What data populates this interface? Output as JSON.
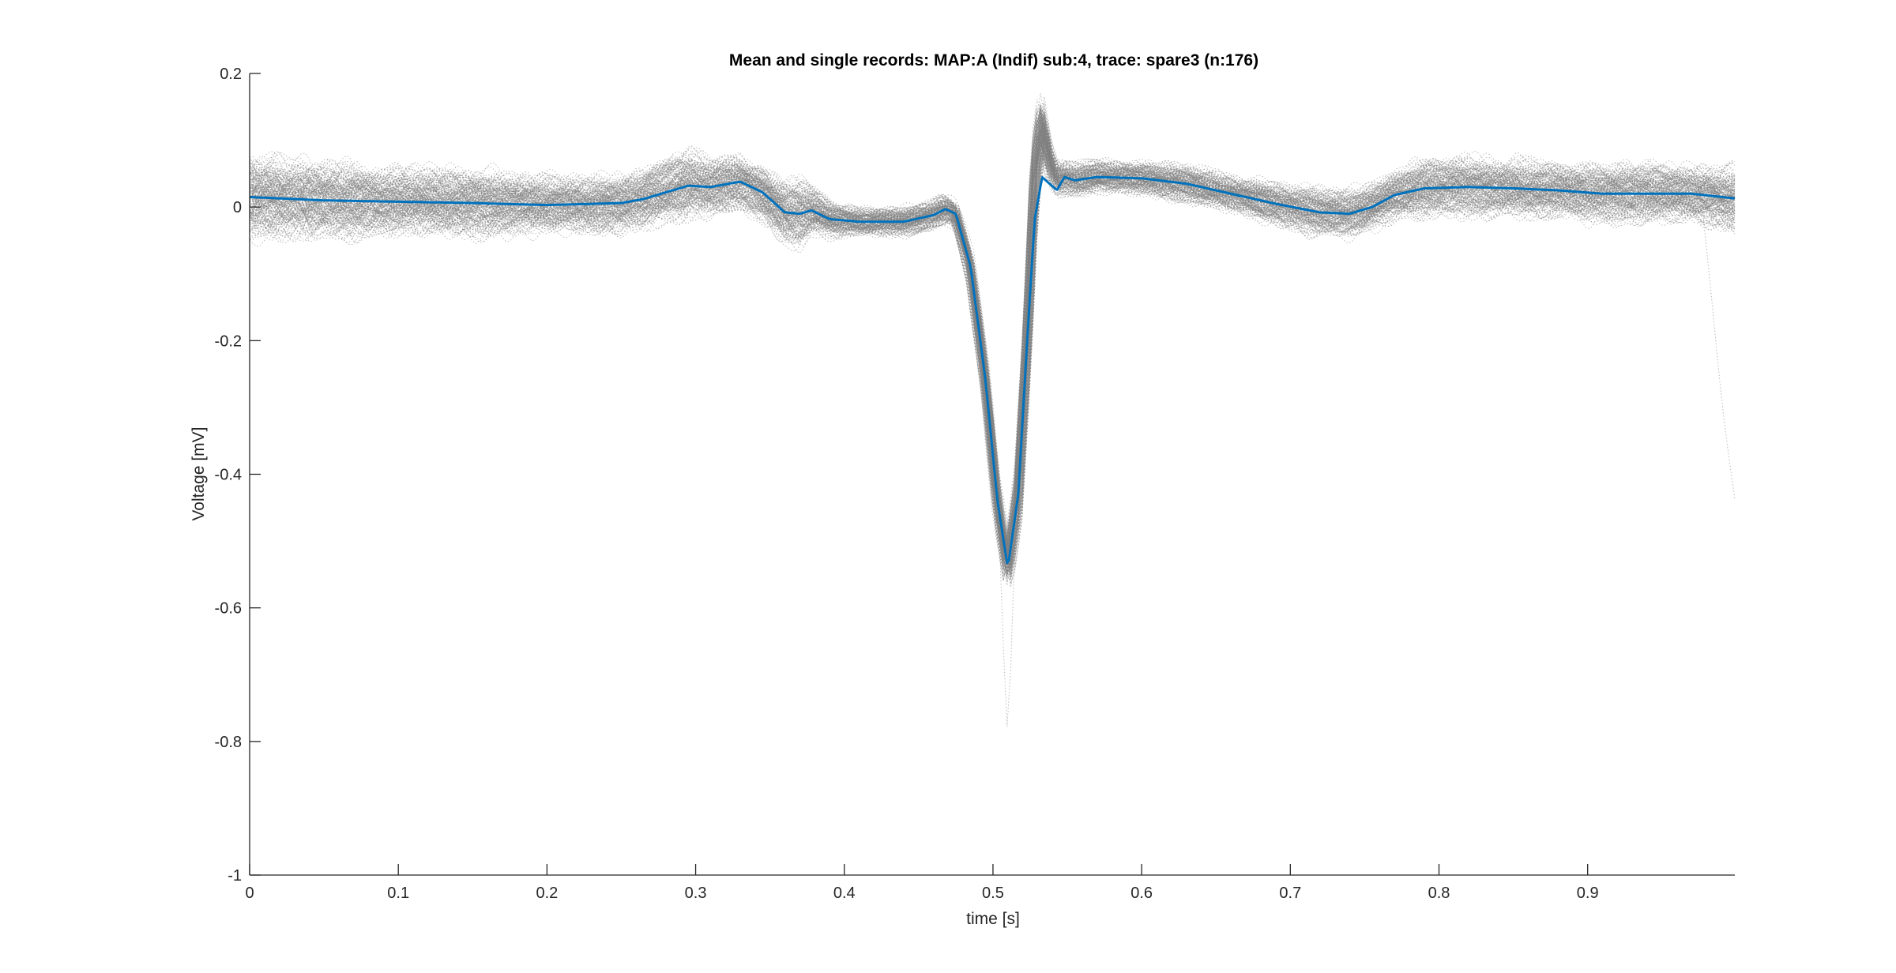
{
  "chart_data": {
    "type": "line",
    "title": "Mean and single records: MAP:A (Indif) sub:4, trace: spare3 (n:176)",
    "xlabel": "time [s]",
    "ylabel": "Voltage [mV]",
    "xlim": [
      0,
      0.999
    ],
    "ylim": [
      -1,
      0.2
    ],
    "x_ticks": [
      0,
      0.1,
      0.2,
      0.3,
      0.4,
      0.5,
      0.6,
      0.7,
      0.8,
      0.9
    ],
    "x_tick_labels": [
      "0",
      "0.1",
      "0.2",
      "0.3",
      "0.4",
      "0.5",
      "0.6",
      "0.7",
      "0.8",
      "0.9"
    ],
    "y_ticks": [
      0.2,
      0,
      -0.2,
      -0.4,
      -0.6,
      -0.8,
      -1
    ],
    "y_tick_labels": [
      "0.2",
      "0",
      "-0.2",
      "-0.4",
      "-0.6",
      "-0.8",
      "-1"
    ],
    "grid": false,
    "box": false,
    "series": [
      {
        "role": "mean",
        "color": "#0072BD",
        "style": "solid",
        "x": [
          0,
          0.05,
          0.1,
          0.15,
          0.2,
          0.25,
          0.265,
          0.28,
          0.295,
          0.31,
          0.33,
          0.345,
          0.36,
          0.37,
          0.378,
          0.39,
          0.41,
          0.44,
          0.46,
          0.468,
          0.475,
          0.485,
          0.495,
          0.503,
          0.51,
          0.517,
          0.523,
          0.528,
          0.533,
          0.538,
          0.543,
          0.548,
          0.555,
          0.57,
          0.6,
          0.63,
          0.66,
          0.69,
          0.72,
          0.74,
          0.755,
          0.77,
          0.79,
          0.82,
          0.85,
          0.88,
          0.91,
          0.94,
          0.97,
          0.999
        ],
        "y": [
          0.015,
          0.01,
          0.008,
          0.006,
          0.003,
          0.006,
          0.012,
          0.022,
          0.032,
          0.03,
          0.038,
          0.022,
          -0.008,
          -0.01,
          -0.005,
          -0.018,
          -0.022,
          -0.022,
          -0.012,
          -0.003,
          -0.01,
          -0.09,
          -0.26,
          -0.44,
          -0.54,
          -0.43,
          -0.2,
          -0.02,
          0.045,
          0.035,
          0.025,
          0.045,
          0.04,
          0.045,
          0.043,
          0.035,
          0.02,
          0.005,
          -0.008,
          -0.01,
          0.0,
          0.018,
          0.028,
          0.03,
          0.028,
          0.025,
          0.02,
          0.02,
          0.02,
          0.013
        ]
      },
      {
        "role": "single-records",
        "count": 176,
        "color": "#808080",
        "style": "dotted",
        "x": [
          0,
          0.05,
          0.1,
          0.15,
          0.2,
          0.25,
          0.265,
          0.28,
          0.295,
          0.31,
          0.33,
          0.345,
          0.36,
          0.37,
          0.378,
          0.39,
          0.41,
          0.44,
          0.46,
          0.468,
          0.475,
          0.485,
          0.495,
          0.503,
          0.51,
          0.517,
          0.523,
          0.528,
          0.533,
          0.538,
          0.543,
          0.548,
          0.555,
          0.57,
          0.6,
          0.63,
          0.66,
          0.69,
          0.72,
          0.74,
          0.755,
          0.77,
          0.79,
          0.82,
          0.85,
          0.88,
          0.91,
          0.94,
          0.97,
          0.999
        ],
        "y_center": [
          0.015,
          0.01,
          0.008,
          0.006,
          0.003,
          0.006,
          0.012,
          0.022,
          0.032,
          0.03,
          0.038,
          0.022,
          -0.008,
          -0.01,
          -0.005,
          -0.018,
          -0.022,
          -0.022,
          -0.012,
          -0.003,
          -0.01,
          -0.09,
          -0.26,
          -0.44,
          -0.54,
          -0.43,
          -0.2,
          0.05,
          0.13,
          0.07,
          0.04,
          0.045,
          0.04,
          0.045,
          0.043,
          0.035,
          0.02,
          0.005,
          -0.008,
          -0.01,
          0.0,
          0.018,
          0.028,
          0.03,
          0.028,
          0.025,
          0.02,
          0.02,
          0.02,
          0.013
        ],
        "y_spread": [
          0.09,
          0.08,
          0.07,
          0.07,
          0.06,
          0.06,
          0.06,
          0.07,
          0.07,
          0.06,
          0.06,
          0.06,
          0.07,
          0.07,
          0.05,
          0.04,
          0.03,
          0.03,
          0.03,
          0.03,
          0.03,
          0.04,
          0.05,
          0.05,
          0.05,
          0.05,
          0.05,
          0.07,
          0.06,
          0.04,
          0.035,
          0.035,
          0.035,
          0.035,
          0.035,
          0.04,
          0.04,
          0.045,
          0.05,
          0.05,
          0.05,
          0.05,
          0.06,
          0.06,
          0.06,
          0.06,
          0.06,
          0.06,
          0.06,
          0.07
        ]
      }
    ]
  }
}
